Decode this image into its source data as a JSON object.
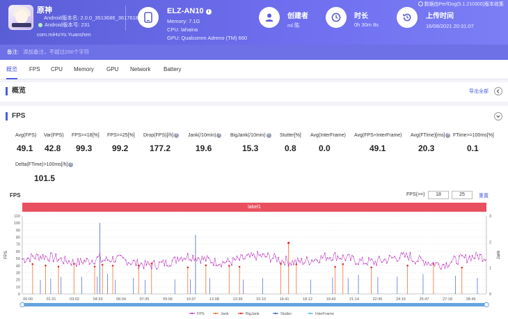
{
  "app": {
    "name": "原神",
    "android_version": "Android版本名: 2.0.0_3513686_3617618",
    "android_code": "Android版本号: 231",
    "package": "com.miHoYo.Yuanshen"
  },
  "device": {
    "model": "ELZ-AN10",
    "memory": "Memory: 7.1G",
    "cpu": "CPU: lahaina",
    "gpu": "GPU: Qualcomm Adreno (TM) 660"
  },
  "creator": {
    "label": "创建者",
    "value": "ml 陈"
  },
  "duration": {
    "label": "时长",
    "value": "0h 30m 8s"
  },
  "upload": {
    "label": "上传时间",
    "value": "16/08/2021 20:31:07"
  },
  "source_note": "数据由PerfDog(5.1.210300)版本收集",
  "note": {
    "label": "备注:",
    "placeholder": "添加备注，不超过200个字符"
  },
  "tabs": [
    "概览",
    "FPS",
    "CPU",
    "Memory",
    "GPU",
    "Network",
    "Battery"
  ],
  "overview": {
    "title": "概览",
    "export_label": "导出全部"
  },
  "fps_panel": {
    "title": "FPS",
    "stats": [
      {
        "label": "Avg(FPS)",
        "value": "49.1"
      },
      {
        "label": "Var(FPS)",
        "value": "42.8"
      },
      {
        "label": "FPS>=18[%]",
        "value": "99.3"
      },
      {
        "label": "FPS>=25[%]",
        "value": "99.2"
      },
      {
        "label": "Drop(FPS)[/h]",
        "value": "177.2"
      },
      {
        "label": "Jank(/10min)",
        "value": "19.6"
      },
      {
        "label": "BigJank(/10min)",
        "value": "15.3"
      },
      {
        "label": "Stutter[%]",
        "value": "0.8"
      },
      {
        "label": "Avg(InterFrame)",
        "value": "0.0"
      },
      {
        "label": "Avg(FPS+InterFrame)",
        "value": "49.1"
      },
      {
        "label": "Avg(FTime)[ms]",
        "value": "20.3"
      },
      {
        "label": "FTime>=100ms[%]",
        "value": "0.1"
      },
      {
        "label": "Delta(FTime)>100ms[/h]",
        "value": "101.5"
      }
    ]
  },
  "chart_controls": {
    "label": "FPS(>=)",
    "threshold1": "18",
    "threshold2": "25",
    "link": "重置"
  },
  "chart_data": {
    "type": "line",
    "title": "FPS",
    "band_label": "label1",
    "ylabel_left": "FPS",
    "ylabel_right": "Jank",
    "ylim_left": [
      0,
      110
    ],
    "ylim_right": [
      0,
      3
    ],
    "yticks_left": [
      "0",
      "10",
      "20",
      "30",
      "40",
      "50",
      "60",
      "70",
      "80",
      "90",
      "100",
      "110"
    ],
    "yticks_right": [
      "0",
      "1",
      "2",
      "3"
    ],
    "xticks": [
      "00:00",
      "01:31",
      "03:02",
      "04:33",
      "06:04",
      "07:35",
      "09:06",
      "10:37",
      "12:08",
      "13:39",
      "15:10",
      "16:41",
      "18:12",
      "19:43",
      "21:14",
      "22:45",
      "24:16",
      "25:47",
      "27:18",
      "28:49"
    ],
    "series": [
      {
        "name": "FPS",
        "color": "#c040c0",
        "approx_mean": 49,
        "approx_range": [
          35,
          62
        ]
      },
      {
        "name": "Jank",
        "color": "#f07030"
      },
      {
        "name": "BigJank",
        "color": "#e03030"
      },
      {
        "name": "Stutter",
        "color": "#4060d0"
      },
      {
        "name": "InterFrame",
        "color": "#60b0e0"
      }
    ],
    "spikes_fps": [
      100,
      83
    ],
    "jank_spike_max": 72
  }
}
